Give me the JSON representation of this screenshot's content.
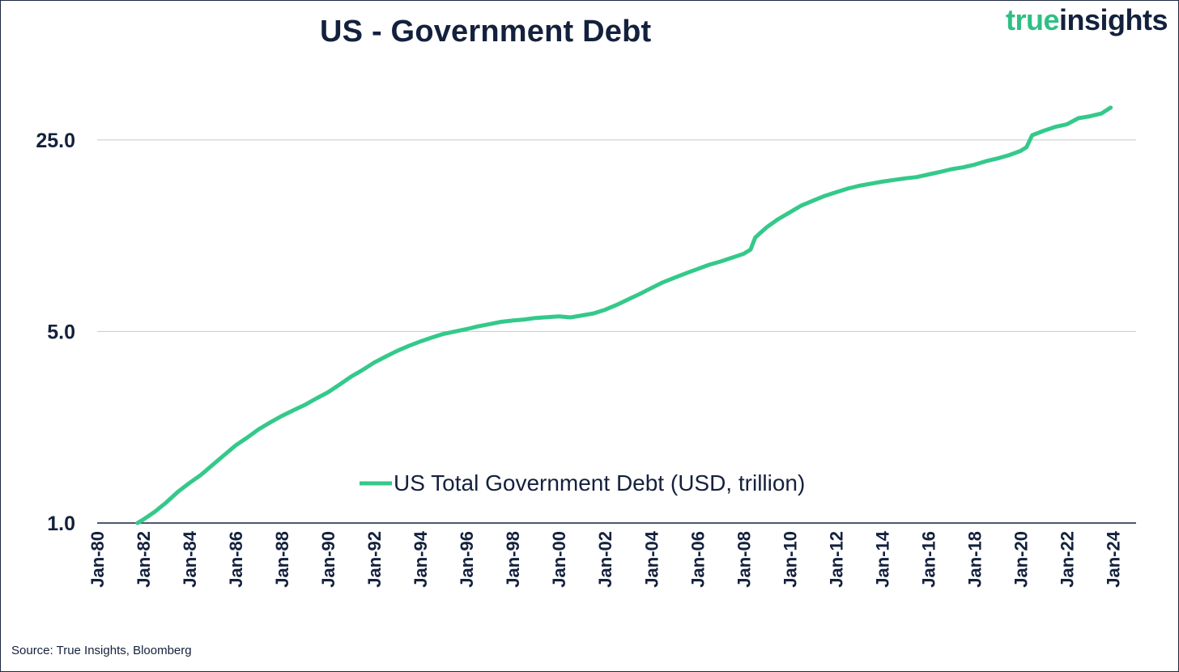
{
  "title": "US - Government Debt",
  "logo": {
    "part1": "true",
    "part2": "insights"
  },
  "source": "Source: True Insights, Bloomberg",
  "colors": {
    "series": "#34c98a",
    "text": "#14213d",
    "grid": "#c8c8c8"
  },
  "chart_data": {
    "type": "line",
    "title": "US - Government Debt",
    "xlabel": "",
    "ylabel": "",
    "yscale": "log",
    "ylim": [
      1.0,
      33.0
    ],
    "yticks": [
      1.0,
      5.0,
      25.0
    ],
    "ytick_labels": [
      "1.0",
      "5.0",
      "25.0"
    ],
    "xlim": [
      1980.0,
      2025.0
    ],
    "xtick_labels": [
      "Jan-80",
      "Jan-82",
      "Jan-84",
      "Jan-86",
      "Jan-88",
      "Jan-90",
      "Jan-92",
      "Jan-94",
      "Jan-96",
      "Jan-98",
      "Jan-00",
      "Jan-02",
      "Jan-04",
      "Jan-06",
      "Jan-08",
      "Jan-10",
      "Jan-12",
      "Jan-14",
      "Jan-16",
      "Jan-18",
      "Jan-20",
      "Jan-22",
      "Jan-24"
    ],
    "xtick_values": [
      1980,
      1982,
      1984,
      1986,
      1988,
      1990,
      1992,
      1994,
      1996,
      1998,
      2000,
      2002,
      2004,
      2006,
      2008,
      2010,
      2012,
      2014,
      2016,
      2018,
      2020,
      2022,
      2024
    ],
    "legend": {
      "label": "US Total Government Debt (USD, trillion)",
      "position": "lower-center"
    },
    "grid": true,
    "series": [
      {
        "name": "US Total Government Debt (USD, trillion)",
        "x": [
          1981.75,
          1982.0,
          1982.5,
          1983.0,
          1983.5,
          1984.0,
          1984.5,
          1985.0,
          1985.5,
          1986.0,
          1986.5,
          1987.0,
          1987.5,
          1988.0,
          1988.5,
          1989.0,
          1989.5,
          1990.0,
          1990.5,
          1991.0,
          1991.5,
          1992.0,
          1992.5,
          1993.0,
          1993.5,
          1994.0,
          1994.5,
          1995.0,
          1995.5,
          1996.0,
          1996.5,
          1997.0,
          1997.5,
          1998.0,
          1998.5,
          1999.0,
          1999.5,
          2000.0,
          2000.5,
          2001.0,
          2001.5,
          2002.0,
          2002.5,
          2003.0,
          2003.5,
          2004.0,
          2004.5,
          2005.0,
          2005.5,
          2006.0,
          2006.5,
          2007.0,
          2007.5,
          2008.0,
          2008.3,
          2008.5,
          2008.75,
          2009.0,
          2009.5,
          2010.0,
          2010.5,
          2011.0,
          2011.5,
          2012.0,
          2012.5,
          2013.0,
          2013.5,
          2014.0,
          2014.5,
          2015.0,
          2015.5,
          2016.0,
          2016.5,
          2017.0,
          2017.5,
          2018.0,
          2018.5,
          2019.0,
          2019.5,
          2020.0,
          2020.25,
          2020.5,
          2021.0,
          2021.5,
          2022.0,
          2022.5,
          2023.0,
          2023.5,
          2023.9
        ],
        "values": [
          1.0,
          1.03,
          1.1,
          1.19,
          1.3,
          1.4,
          1.5,
          1.63,
          1.77,
          1.92,
          2.05,
          2.2,
          2.33,
          2.46,
          2.58,
          2.7,
          2.85,
          3.0,
          3.2,
          3.42,
          3.62,
          3.85,
          4.05,
          4.25,
          4.43,
          4.6,
          4.75,
          4.9,
          5.0,
          5.1,
          5.22,
          5.32,
          5.42,
          5.48,
          5.53,
          5.6,
          5.64,
          5.68,
          5.63,
          5.72,
          5.82,
          6.0,
          6.25,
          6.55,
          6.85,
          7.2,
          7.55,
          7.85,
          8.15,
          8.45,
          8.75,
          9.0,
          9.3,
          9.6,
          9.95,
          11.0,
          11.5,
          12.0,
          12.85,
          13.6,
          14.4,
          15.0,
          15.6,
          16.1,
          16.6,
          17.0,
          17.3,
          17.6,
          17.85,
          18.1,
          18.3,
          18.7,
          19.1,
          19.55,
          19.85,
          20.3,
          20.9,
          21.4,
          22.0,
          22.8,
          23.5,
          26.0,
          27.0,
          27.9,
          28.5,
          30.0,
          30.5,
          31.2,
          32.8
        ]
      }
    ]
  }
}
